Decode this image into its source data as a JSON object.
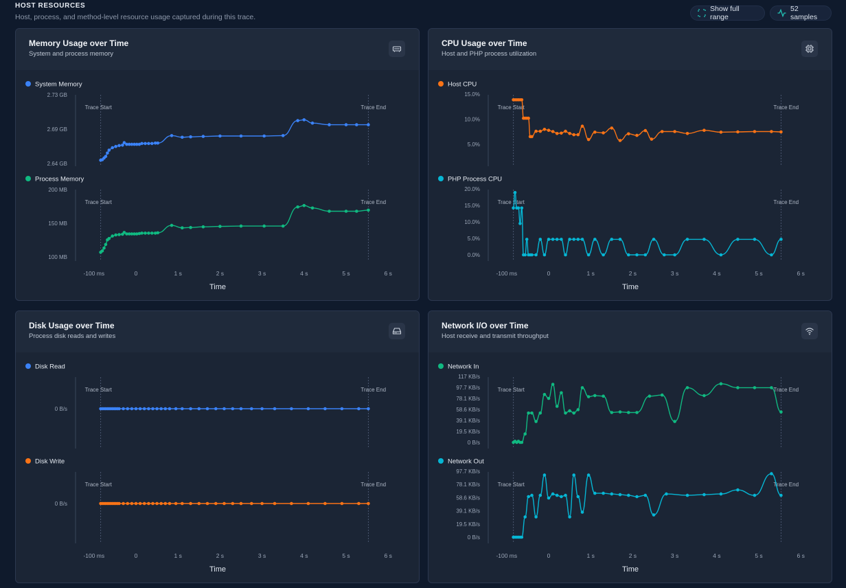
{
  "header": {
    "title": "HOST RESOURCES",
    "subtitle": "Host, process, and method-level resource usage captured during this trace.",
    "show_full_range_label": "Show full range",
    "samples_label": "52 samples"
  },
  "common": {
    "x_ticks": [
      "-100 ms",
      "0",
      "1 s",
      "2 s",
      "3 s",
      "4 s",
      "5 s",
      "6 s"
    ],
    "x_label": "Time",
    "marker_start": "Trace Start",
    "marker_end": "Trace End"
  },
  "cards": [
    {
      "title": "Memory Usage over Time",
      "subtitle": "System and process memory",
      "icon": "memory-icon",
      "charts": [
        {
          "series": "System Memory",
          "color": "#3b82f6",
          "y_ticks": [
            "2.73 GB",
            "2.69 GB",
            "2.64 GB"
          ],
          "ylim": [
            2.635,
            2.8
          ]
        },
        {
          "series": "Process Memory",
          "color": "#10b981",
          "y_ticks": [
            "200 MB",
            "150 MB",
            "100 MB"
          ],
          "ylim": [
            95,
            285
          ]
        }
      ]
    },
    {
      "title": "CPU Usage over Time",
      "subtitle": "Host and PHP process utilization",
      "icon": "cpu-icon",
      "charts": [
        {
          "series": "Host CPU",
          "color": "#f97316",
          "y_ticks": [
            "15.0%",
            "10.0%",
            "5.0%"
          ],
          "ylim": [
            0,
            15.8
          ]
        },
        {
          "series": "PHP Process CPU",
          "color": "#06b6d4",
          "y_ticks": [
            "20.0%",
            "15.0%",
            "10.0%",
            "5.0%",
            "0.0%"
          ],
          "ylim": [
            0,
            20
          ]
        }
      ]
    },
    {
      "title": "Disk Usage over Time",
      "subtitle": "Process disk reads and writes",
      "icon": "disk-icon",
      "charts": [
        {
          "series": "Disk Read",
          "color": "#3b82f6",
          "y_ticks": [
            "0 B/s"
          ],
          "ylim": [
            0,
            1
          ]
        },
        {
          "series": "Disk Write",
          "color": "#f97316",
          "y_ticks": [
            "0 B/s"
          ],
          "ylim": [
            0,
            1
          ]
        }
      ]
    },
    {
      "title": "Network I/O over Time",
      "subtitle": "Host receive and transmit throughput",
      "icon": "wifi-icon",
      "charts": [
        {
          "series": "Network In",
          "color": "#10b981",
          "y_ticks": [
            "117 KB/s",
            "97.7 KB/s",
            "78.1 KB/s",
            "58.6 KB/s",
            "39.1 KB/s",
            "19.5 KB/s",
            "0 B/s"
          ],
          "ylim": [
            0,
            117
          ]
        },
        {
          "series": "Network Out",
          "color": "#06b6d4",
          "y_ticks": [
            "97.7 KB/s",
            "78.1 KB/s",
            "58.6 KB/s",
            "39.1 KB/s",
            "19.5 KB/s",
            "0 B/s"
          ],
          "ylim": [
            0,
            97.7
          ]
        }
      ]
    }
  ],
  "chart_data": [
    {
      "type": "line",
      "name": "System Memory",
      "x_unit": "ms",
      "xlim": [
        -1000,
        6000
      ],
      "trace_start": -840,
      "trace_end": 5530,
      "ylim": [
        2.635,
        2.8
      ],
      "ylabel": "GB",
      "x": [
        -840,
        -800,
        -760,
        -720,
        -680,
        -640,
        -560,
        -480,
        -400,
        -320,
        -280,
        -220,
        -160,
        -100,
        -40,
        20,
        80,
        140,
        220,
        300,
        380,
        460,
        520,
        850,
        1100,
        1300,
        1600,
        2000,
        2500,
        3050,
        3500,
        3850,
        4000,
        4200,
        4600,
        5000,
        5250,
        5530
      ],
      "y": [
        2.643,
        2.644,
        2.648,
        2.652,
        2.66,
        2.667,
        2.673,
        2.676,
        2.678,
        2.679,
        2.685,
        2.681,
        2.681,
        2.681,
        2.681,
        2.681,
        2.681,
        2.683,
        2.683,
        2.683,
        2.683,
        2.684,
        2.684,
        2.702,
        2.698,
        2.699,
        2.7,
        2.701,
        2.701,
        2.701,
        2.702,
        2.738,
        2.74,
        2.732,
        2.728,
        2.728,
        2.728,
        2.728
      ]
    },
    {
      "type": "line",
      "name": "Process Memory",
      "x_unit": "ms",
      "xlim": [
        -1000,
        6000
      ],
      "trace_start": -840,
      "trace_end": 5530,
      "ylim": [
        95,
        285
      ],
      "ylabel": "MB",
      "x": [
        -840,
        -800,
        -760,
        -720,
        -680,
        -640,
        -560,
        -480,
        -400,
        -320,
        -280,
        -220,
        -160,
        -100,
        -40,
        20,
        80,
        140,
        220,
        300,
        380,
        460,
        520,
        850,
        1100,
        1300,
        1600,
        2000,
        2500,
        3050,
        3500,
        3850,
        4000,
        4200,
        4600,
        5000,
        5250,
        5530
      ],
      "y": [
        108,
        112,
        120,
        130,
        143,
        147,
        154,
        157,
        158,
        159,
        164,
        160,
        160,
        160,
        160,
        160,
        161,
        162,
        162,
        162,
        162,
        162,
        163,
        184,
        177,
        178,
        180,
        181,
        182,
        182,
        182,
        236,
        240,
        233,
        224,
        224,
        224,
        227
      ]
    },
    {
      "type": "line",
      "name": "Host CPU",
      "x_unit": "ms",
      "xlim": [
        -1000,
        6000
      ],
      "trace_start": -840,
      "trace_end": 5530,
      "ylim": [
        0,
        15.8
      ],
      "ylabel": "%",
      "x": [
        -840,
        -800,
        -760,
        -720,
        -680,
        -640,
        -600,
        -560,
        -520,
        -480,
        -440,
        -400,
        -300,
        -200,
        -100,
        0,
        100,
        200,
        300,
        400,
        500,
        600,
        700,
        800,
        950,
        1100,
        1300,
        1500,
        1700,
        1900,
        2100,
        2300,
        2450,
        2700,
        3000,
        3300,
        3700,
        4100,
        4500,
        4900,
        5300,
        5530
      ],
      "y": [
        14.0,
        14.0,
        14.0,
        14.0,
        14.0,
        14.0,
        8.2,
        8.2,
        8.2,
        8.2,
        2.4,
        2.4,
        4.1,
        4.1,
        4.7,
        4.4,
        4.0,
        3.4,
        3.5,
        4.1,
        3.4,
        3.0,
        3.0,
        5.7,
        1.5,
        3.8,
        3.6,
        5.1,
        1.2,
        3.3,
        2.8,
        4.3,
        1.6,
        4.0,
        4.0,
        3.4,
        4.4,
        3.8,
        3.9,
        4.0,
        4.0,
        3.9
      ]
    },
    {
      "type": "line",
      "name": "PHP Process CPU",
      "x_unit": "ms",
      "xlim": [
        -1000,
        6000
      ],
      "trace_start": -840,
      "trace_end": 5530,
      "ylim": [
        0,
        20
      ],
      "ylabel": "%",
      "x": [
        -840,
        -800,
        -760,
        -720,
        -680,
        -640,
        -600,
        -560,
        -520,
        -480,
        -440,
        -400,
        -300,
        -200,
        -100,
        0,
        100,
        200,
        300,
        400,
        500,
        600,
        700,
        800,
        950,
        1100,
        1300,
        1500,
        1700,
        1900,
        2100,
        2300,
        2500,
        2750,
        3000,
        3300,
        3700,
        4100,
        4500,
        4900,
        5300,
        5530
      ],
      "y": [
        14.2,
        18.9,
        14.2,
        14.2,
        9.5,
        14.2,
        0,
        0,
        4.7,
        0,
        0,
        0,
        0,
        4.7,
        0,
        4.7,
        4.7,
        4.7,
        4.7,
        0,
        4.7,
        4.7,
        4.7,
        4.7,
        0,
        4.7,
        0,
        4.7,
        4.7,
        0,
        0,
        0,
        4.7,
        0,
        0,
        4.7,
        4.7,
        0,
        4.7,
        4.7,
        0,
        4.7
      ]
    },
    {
      "type": "line",
      "name": "Disk Read",
      "x_unit": "ms",
      "xlim": [
        -1000,
        6000
      ],
      "trace_start": -840,
      "trace_end": 5530,
      "ylim": [
        0,
        1
      ],
      "ylabel": "B/s",
      "x": [
        -840,
        -800,
        -760,
        -720,
        -680,
        -640,
        -600,
        -560,
        -520,
        -480,
        -440,
        -400,
        -300,
        -200,
        -100,
        0,
        100,
        200,
        300,
        400,
        500,
        600,
        700,
        800,
        950,
        1100,
        1300,
        1500,
        1700,
        1900,
        2100,
        2300,
        2500,
        2750,
        3000,
        3300,
        3700,
        4100,
        4500,
        4900,
        5300,
        5530
      ],
      "y": [
        0,
        0,
        0,
        0,
        0,
        0,
        0,
        0,
        0,
        0,
        0,
        0,
        0,
        0,
        0,
        0,
        0,
        0,
        0,
        0,
        0,
        0,
        0,
        0,
        0,
        0,
        0,
        0,
        0,
        0,
        0,
        0,
        0,
        0,
        0,
        0,
        0,
        0,
        0,
        0,
        0,
        0
      ]
    },
    {
      "type": "line",
      "name": "Disk Write",
      "x_unit": "ms",
      "xlim": [
        -1000,
        6000
      ],
      "trace_start": -840,
      "trace_end": 5530,
      "ylim": [
        0,
        1
      ],
      "ylabel": "B/s",
      "x": [
        -840,
        -800,
        -760,
        -720,
        -680,
        -640,
        -600,
        -560,
        -520,
        -480,
        -440,
        -400,
        -300,
        -200,
        -100,
        0,
        100,
        200,
        300,
        400,
        500,
        600,
        700,
        800,
        950,
        1100,
        1300,
        1500,
        1700,
        1900,
        2100,
        2300,
        2500,
        2750,
        3000,
        3300,
        3700,
        4100,
        4500,
        4900,
        5300,
        5530
      ],
      "y": [
        0,
        0,
        0,
        0,
        0,
        0,
        0,
        0,
        0,
        0,
        0,
        0,
        0,
        0,
        0,
        0,
        0,
        0,
        0,
        0,
        0,
        0,
        0,
        0,
        0,
        0,
        0,
        0,
        0,
        0,
        0,
        0,
        0,
        0,
        0,
        0,
        0,
        0,
        0,
        0,
        0,
        0
      ]
    },
    {
      "type": "line",
      "name": "Network In",
      "x_unit": "ms",
      "xlim": [
        -1000,
        6000
      ],
      "trace_start": -840,
      "trace_end": 5530,
      "ylim": [
        0,
        117
      ],
      "ylabel": "KB/s",
      "x": [
        -840,
        -800,
        -760,
        -720,
        -680,
        -640,
        -560,
        -480,
        -400,
        -300,
        -200,
        -100,
        0,
        100,
        200,
        300,
        400,
        500,
        600,
        700,
        800,
        950,
        1100,
        1300,
        1500,
        1700,
        1900,
        2100,
        2400,
        2700,
        3000,
        3300,
        3700,
        4100,
        4500,
        4900,
        5300,
        5530
      ],
      "y": [
        0,
        2,
        0,
        2,
        0,
        0,
        15,
        52,
        52,
        37,
        52,
        85,
        78,
        103,
        64,
        88,
        52,
        56,
        52,
        58,
        97,
        81,
        83,
        82,
        53,
        54,
        53,
        53,
        82,
        84,
        37,
        97,
        83,
        104,
        97,
        97,
        97,
        54
      ]
    },
    {
      "type": "line",
      "name": "Network Out",
      "x_unit": "ms",
      "xlim": [
        -1000,
        6000
      ],
      "trace_start": -840,
      "trace_end": 5530,
      "ylim": [
        0,
        97.7
      ],
      "ylabel": "KB/s",
      "x": [
        -840,
        -800,
        -760,
        -720,
        -680,
        -640,
        -560,
        -480,
        -400,
        -300,
        -200,
        -100,
        0,
        100,
        200,
        300,
        400,
        500,
        600,
        700,
        800,
        950,
        1100,
        1300,
        1500,
        1700,
        1900,
        2100,
        2300,
        2500,
        2800,
        3300,
        3700,
        4100,
        4500,
        4900,
        5300,
        5530
      ],
      "y": [
        0,
        0,
        0,
        0,
        0,
        0,
        30,
        60,
        62,
        30,
        62,
        92,
        58,
        64,
        62,
        60,
        62,
        30,
        92,
        60,
        37,
        92,
        65,
        65,
        64,
        63,
        62,
        60,
        62,
        33,
        64,
        62,
        63,
        64,
        70,
        62,
        94,
        62
      ]
    }
  ]
}
